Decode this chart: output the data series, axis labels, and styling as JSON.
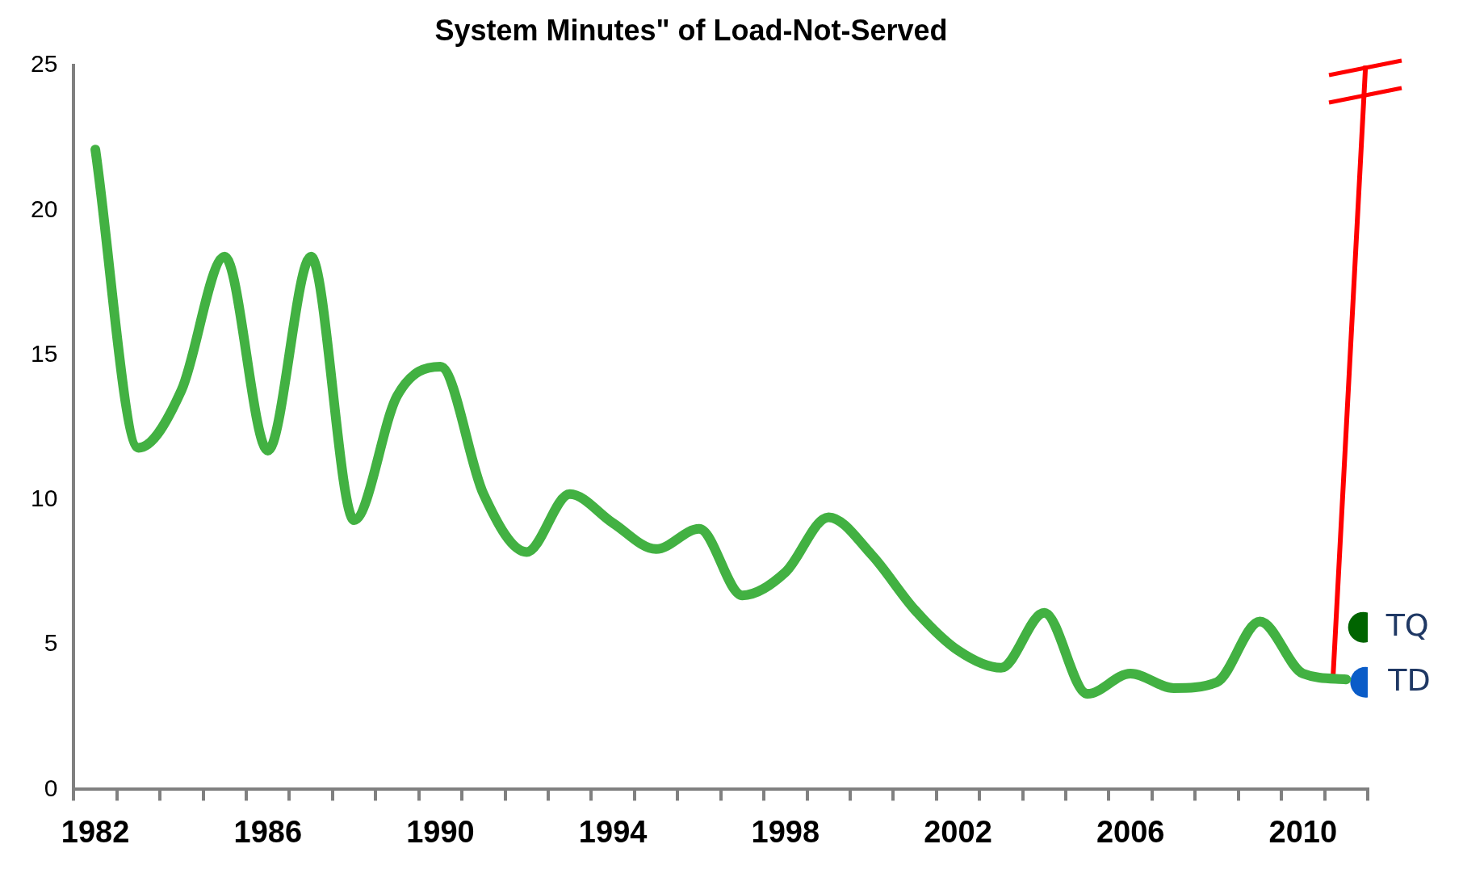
{
  "chart_data": {
    "type": "line",
    "title": "System Minutes\" of Load-Not-Served",
    "xlim": [
      1981.5,
      2011.5
    ],
    "xticks": [
      {
        "value": 1981.5,
        "label": null
      },
      1982,
      {
        "value": 1982.5,
        "label": null
      },
      {
        "value": 1983.5,
        "label": null
      },
      {
        "value": 1984.5,
        "label": null
      },
      {
        "value": 1985.5,
        "label": null
      },
      1986,
      {
        "value": 1986.5,
        "label": null
      },
      {
        "value": 1987.5,
        "label": null
      },
      {
        "value": 1988.5,
        "label": null
      },
      {
        "value": 1989.5,
        "label": null
      },
      1990,
      {
        "value": 1990.5,
        "label": null
      },
      {
        "value": 1991.5,
        "label": null
      },
      {
        "value": 1992.5,
        "label": null
      },
      {
        "value": 1993.5,
        "label": null
      },
      1994,
      {
        "value": 1994.5,
        "label": null
      },
      {
        "value": 1995.5,
        "label": null
      },
      {
        "value": 1996.5,
        "label": null
      },
      {
        "value": 1997.5,
        "label": null
      },
      1998,
      {
        "value": 1998.5,
        "label": null
      },
      {
        "value": 1999.5,
        "label": null
      },
      {
        "value": 2000.5,
        "label": null
      },
      {
        "value": 2001.5,
        "label": null
      },
      2002,
      {
        "value": 2002.5,
        "label": null
      },
      {
        "value": 2003.5,
        "label": null
      },
      {
        "value": 2004.5,
        "label": null
      },
      {
        "value": 2005.5,
        "label": null
      },
      2006,
      {
        "value": 2006.5,
        "label": null
      },
      {
        "value": 2007.5,
        "label": null
      },
      {
        "value": 2008.5,
        "label": null
      },
      {
        "value": 2009.5,
        "label": null
      },
      2010,
      {
        "value": 2010.5,
        "label": null
      },
      {
        "value": 2011.5,
        "label": null
      }
    ],
    "ylim": [
      0,
      25
    ],
    "yticks": [
      0,
      5,
      10,
      15,
      20,
      25
    ],
    "grid": false,
    "legend": false,
    "marker": "none",
    "series": [
      {
        "color": "#42b142",
        "x": [
          1982,
          1983,
          1984,
          1985,
          1986,
          1987,
          1988,
          1989,
          1990,
          1991,
          1992,
          1993,
          1994,
          1995,
          1996,
          1997,
          1998,
          1999,
          2000,
          2001,
          2002,
          2003,
          2004,
          2005,
          2006,
          2007,
          2008,
          2009,
          2010,
          2011
        ],
        "values": [
          22.1,
          11.8,
          13.8,
          18.4,
          11.7,
          18.4,
          9.3,
          13.6,
          14.6,
          10.2,
          8.2,
          10.2,
          9.2,
          8.3,
          9.0,
          6.7,
          7.5,
          9.4,
          8.1,
          6.2,
          4.8,
          4.2,
          6.1,
          3.3,
          4.0,
          3.5,
          3.7,
          5.8,
          4.0,
          3.8
        ]
      },
      {
        "color": "#ff0000",
        "x": [
          2010.7,
          2011.45
        ],
        "values": [
          4.0,
          25
        ]
      },
      {
        "name": "TQ",
        "type": "scatter",
        "marker": "circle",
        "color": "#006400",
        "x": [
          2011.4
        ],
        "values": [
          5.6
        ]
      },
      {
        "name": "TD",
        "type": "scatter",
        "marker": "circle",
        "color": "#0a5cc8",
        "x": [
          2011.45
        ],
        "values": [
          3.7
        ]
      }
    ]
  }
}
